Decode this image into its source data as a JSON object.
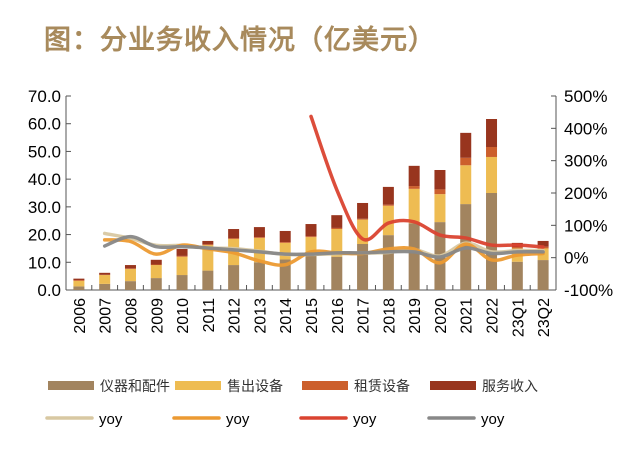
{
  "title": "图：分业务收入情况（亿美元）",
  "chart_data": {
    "type": "bar+line",
    "title": "图：分业务收入情况（亿美元）",
    "categories": [
      "2006",
      "2007",
      "2008",
      "2009",
      "2010",
      "2011",
      "2012",
      "2013",
      "2014",
      "2015",
      "2016",
      "2017",
      "2018",
      "2019",
      "2020",
      "2021",
      "2022",
      "23Q1",
      "23Q2"
    ],
    "left_axis": {
      "ylim": [
        0,
        70
      ],
      "ticks": [
        "0.0",
        "10.0",
        "20.0",
        "30.0",
        "40.0",
        "50.0",
        "60.0",
        "70.0"
      ]
    },
    "right_axis": {
      "ylim": [
        -100,
        500
      ],
      "ticks": [
        "-100%",
        "0%",
        "100%",
        "200%",
        "300%",
        "400%",
        "500%"
      ]
    },
    "bar_series": [
      {
        "name": "仪器和配件",
        "color": "#a2845f",
        "values": [
          1.3,
          2.2,
          3.2,
          4.3,
          5.4,
          7.0,
          9.0,
          10.0,
          11.0,
          12.5,
          12.0,
          16.6,
          19.8,
          24.1,
          24.5,
          31.0,
          35.0,
          10.2,
          10.8
        ]
      },
      {
        "name": "售出设备",
        "color": "#eebc52",
        "values": [
          2.0,
          3.2,
          4.4,
          4.7,
          6.6,
          9.2,
          9.4,
          8.8,
          6.0,
          6.6,
          10.0,
          8.8,
          10.6,
          12.4,
          10.1,
          14.0,
          13.0,
          4.8,
          4.2
        ]
      },
      {
        "name": "租赁设备",
        "color": "#cc5f2c",
        "values": [
          0.3,
          0.1,
          0.2,
          0.2,
          0.3,
          0.3,
          0.3,
          0.3,
          0.3,
          0.3,
          0.4,
          0.3,
          0.4,
          1.0,
          1.7,
          2.7,
          3.6,
          0.5,
          0.6
        ]
      },
      {
        "name": "服务收入",
        "color": "#98351e",
        "values": [
          0.5,
          0.7,
          1.2,
          1.7,
          2.5,
          1.2,
          3.3,
          3.6,
          4.0,
          4.4,
          4.6,
          5.7,
          6.4,
          7.3,
          7.0,
          9.0,
          10.1,
          1.5,
          2.1
        ]
      }
    ],
    "line_series": [
      {
        "name": "yoy",
        "color": "#d8c8a2",
        "values": [
          null,
          75,
          60,
          38,
          38,
          30,
          28,
          20,
          10,
          10,
          12,
          14,
          16,
          25,
          5,
          45,
          18,
          22,
          22
        ]
      },
      {
        "name": "yoy",
        "color": "#ec9a32",
        "values": [
          null,
          55,
          50,
          11,
          39,
          27,
          15,
          -10,
          -22,
          18,
          15,
          13,
          27,
          27,
          -16,
          42,
          -7,
          8,
          13
        ]
      },
      {
        "name": "yoy",
        "color": "#da4330",
        "values": [
          null,
          null,
          null,
          null,
          null,
          null,
          null,
          null,
          null,
          437,
          210,
          58,
          107,
          111,
          70,
          61,
          39,
          39,
          33
        ]
      },
      {
        "name": "yoy",
        "color": "#888888",
        "values": [
          null,
          36,
          65,
          34,
          34,
          30,
          24,
          18,
          11,
          11,
          15,
          15,
          18,
          18,
          2,
          30,
          13,
          18,
          18
        ]
      }
    ],
    "legend_placement": "bottom",
    "grid": false
  }
}
